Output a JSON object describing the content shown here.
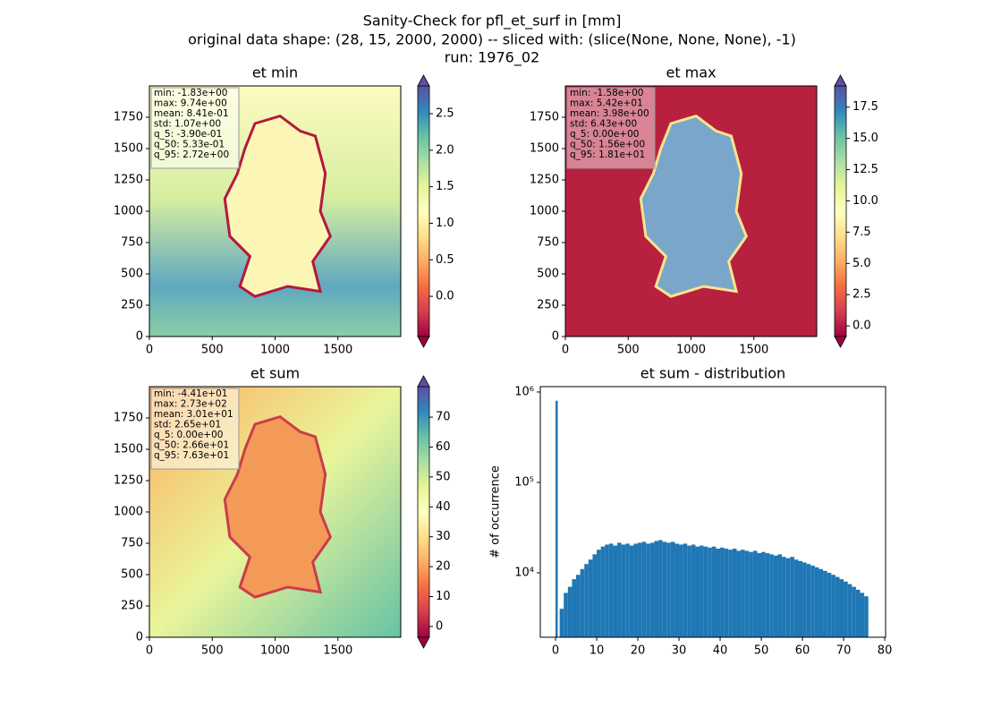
{
  "suptitle": [
    "Sanity-Check for pfl_et_surf in [mm]",
    "original data shape: (28, 15, 2000, 2000) -- sliced with: (slice(None, None, None), -1)",
    "run: 1976_02"
  ],
  "chart_data": [
    {
      "type": "heatmap",
      "title": "et min",
      "xlim": [
        0,
        2000
      ],
      "ylim": [
        0,
        2000
      ],
      "xticks": [
        0,
        500,
        1000,
        1500
      ],
      "yticks": [
        0,
        250,
        500,
        750,
        1000,
        1250,
        1500,
        1750
      ],
      "colormap": "Spectral",
      "clim": [
        -0.55,
        2.88
      ],
      "cticks": [
        {
          "value": 0,
          "label": "0.0"
        },
        {
          "value": 0.5,
          "label": "0.5"
        },
        {
          "value": 1,
          "label": "1.0"
        },
        {
          "value": 1.5,
          "label": "1.5"
        },
        {
          "value": 2,
          "label": "2.0"
        },
        {
          "value": 2.5,
          "label": "2.5"
        }
      ],
      "stats": [
        "min: -1.83e+00",
        "max: 9.74e+00",
        "mean: 8.41e-01",
        "std: 1.07e+00",
        "q_5: -3.90e-01",
        "q_50: 5.33e-01",
        "q_95: 2.72e+00"
      ]
    },
    {
      "type": "heatmap",
      "title": "et max",
      "xlim": [
        0,
        2000
      ],
      "ylim": [
        0,
        2000
      ],
      "xticks": [
        0,
        500,
        1000,
        1500
      ],
      "yticks": [
        0,
        250,
        500,
        750,
        1000,
        1250,
        1500,
        1750
      ],
      "colormap": "Spectral",
      "clim": [
        -0.85,
        19.2
      ],
      "cticks": [
        {
          "value": 0,
          "label": "0.0"
        },
        2.5,
        {
          "value": 5,
          "label": "5.0"
        },
        7.5,
        {
          "value": 10,
          "label": "10.0"
        },
        12.5,
        {
          "value": 15,
          "label": "15.0"
        },
        17.5
      ],
      "stats": [
        "min: -1.58e+00",
        "max: 5.42e+01",
        "mean: 3.98e+00",
        "std: 6.43e+00",
        "q_5: 0.00e+00",
        "q_50: 1.56e+00",
        "q_95: 1.81e+01"
      ]
    },
    {
      "type": "heatmap",
      "title": "et sum",
      "xlim": [
        0,
        2000
      ],
      "ylim": [
        0,
        2000
      ],
      "xticks": [
        0,
        500,
        1000,
        1500
      ],
      "yticks": [
        0,
        250,
        500,
        750,
        1000,
        1250,
        1500,
        1750
      ],
      "colormap": "Spectral",
      "clim": [
        -3.6,
        80.2
      ],
      "cticks": [
        0,
        10,
        20,
        30,
        40,
        50,
        60,
        70
      ],
      "stats": [
        "min: -4.41e+01",
        "max: 2.73e+02",
        "mean: 3.01e+01",
        "std: 2.65e+01",
        "q_5: 0.00e+00",
        "q_50: 2.66e+01",
        "q_95: 7.63e+01"
      ]
    },
    {
      "type": "histogram",
      "title": "et sum - distribution",
      "ylabel": "# of occurrence",
      "color": "#1f77b4",
      "log_y": true,
      "xlim": [
        -3.7,
        80.2
      ],
      "ylim": [
        1937,
        1146000
      ],
      "xticks": [
        0,
        10,
        20,
        30,
        40,
        50,
        60,
        70,
        80
      ],
      "yticks": [
        {
          "value": 10000,
          "label": "10⁴"
        },
        {
          "value": 100000,
          "label": "10⁵"
        },
        {
          "value": 1000000,
          "label": "10⁶"
        }
      ],
      "bins": [
        0,
        1,
        2,
        3,
        4,
        5,
        6,
        7,
        8,
        9,
        10,
        11,
        12,
        13,
        14,
        15,
        16,
        17,
        18,
        19,
        20,
        21,
        22,
        23,
        24,
        25,
        26,
        27,
        28,
        29,
        30,
        31,
        32,
        33,
        34,
        35,
        36,
        37,
        38,
        39,
        40,
        41,
        42,
        43,
        44,
        45,
        46,
        47,
        48,
        49,
        50,
        51,
        52,
        53,
        54,
        55,
        56,
        57,
        58,
        59,
        60,
        61,
        62,
        63,
        64,
        65,
        66,
        67,
        68,
        69,
        70,
        71,
        72,
        73,
        74,
        75,
        76
      ],
      "counts": [
        800000,
        4000,
        6000,
        7000,
        8500,
        9500,
        11000,
        12500,
        14000,
        16000,
        18000,
        19500,
        20500,
        21000,
        20000,
        21500,
        20500,
        21000,
        20000,
        21000,
        21500,
        22000,
        21000,
        21500,
        22500,
        23000,
        22000,
        21500,
        22000,
        21000,
        20500,
        21000,
        20000,
        20500,
        19500,
        20000,
        19500,
        19000,
        19500,
        18500,
        19000,
        18500,
        18000,
        18500,
        17500,
        18000,
        17500,
        17000,
        17500,
        16500,
        17000,
        16500,
        16000,
        15500,
        16000,
        15000,
        14500,
        15000,
        14000,
        13500,
        13000,
        12500,
        12000,
        11500,
        11000,
        10500,
        10000,
        9500,
        9000,
        8500,
        8000,
        7500,
        7000,
        6500,
        6000,
        5500
      ]
    }
  ]
}
